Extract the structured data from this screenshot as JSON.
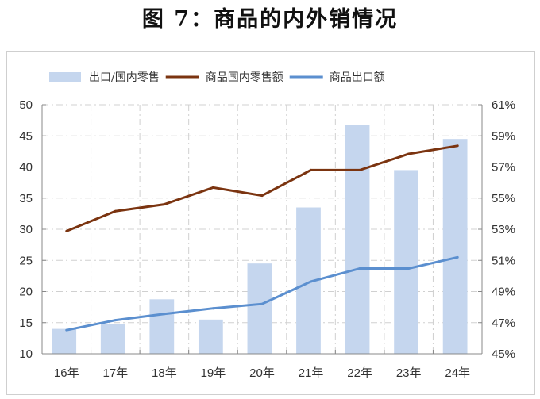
{
  "title": "图 7：商品的内外销情况",
  "chart_data": {
    "type": "bar+line",
    "title": "图 7：商品的内外销情况",
    "categories": [
      "16年",
      "17年",
      "18年",
      "19年",
      "20年",
      "21年",
      "22年",
      "23年",
      "24年"
    ],
    "series": [
      {
        "name": "出口/国内零售",
        "type": "bar",
        "axis": "right",
        "color": "#c5d6ee",
        "values": [
          46.6,
          46.9,
          48.5,
          47.2,
          50.8,
          54.4,
          59.7,
          56.8,
          58.8
        ]
      },
      {
        "name": "商品国内零售额",
        "type": "line",
        "axis": "left",
        "color": "#7b3410",
        "values": [
          29.7,
          32.9,
          34.0,
          36.7,
          35.4,
          39.5,
          39.5,
          42.1,
          43.4
        ]
      },
      {
        "name": "商品出口额",
        "type": "line",
        "axis": "left",
        "color": "#5b8fcf",
        "values": [
          13.8,
          15.4,
          16.4,
          17.3,
          18.0,
          21.6,
          23.7,
          23.7,
          25.5
        ]
      }
    ],
    "left_axis": {
      "ylim": [
        10,
        50
      ],
      "ticks": [
        "10",
        "15",
        "20",
        "25",
        "30",
        "35",
        "40",
        "45",
        "50"
      ]
    },
    "right_axis": {
      "ylim": [
        45,
        61
      ],
      "ticks": [
        "45%",
        "47%",
        "49%",
        "51%",
        "53%",
        "55%",
        "57%",
        "59%",
        "61%"
      ]
    },
    "grid": true,
    "legend_placement": "top"
  }
}
